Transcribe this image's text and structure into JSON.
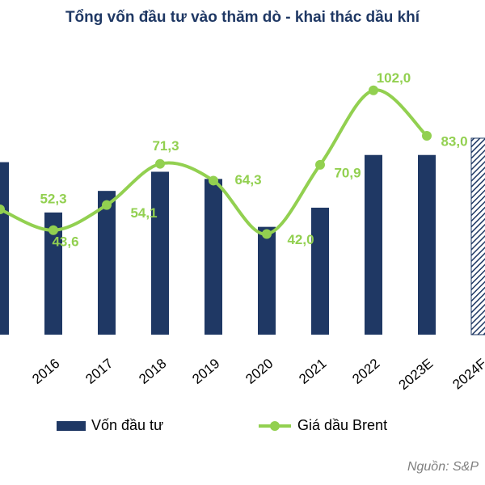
{
  "chart_data": {
    "type": "bar_line",
    "title": "Tổng vốn đầu tư vào thăm dò - khai thác dầu khí",
    "categories": [
      null,
      "2016",
      "2017",
      "2018",
      "2019",
      "2020",
      "2021",
      "2022",
      "2023E",
      "2024F"
    ],
    "series": [
      {
        "name": "Vốn đầu tư",
        "type": "bar",
        "color": "#1f3864",
        "values": [
          72,
          51,
          60,
          68,
          65,
          45,
          53,
          75,
          75,
          82
        ],
        "hatched_index": 9
      },
      {
        "name": "Giá dầu Brent",
        "type": "line",
        "axis": "y2",
        "color": "#92d050",
        "values": [
          52.3,
          43.6,
          54.1,
          71.3,
          64.3,
          42.0,
          70.9,
          102.0,
          83.0,
          null
        ],
        "value_labels": [
          "52,3",
          "43,6",
          "54,1",
          "71,3",
          "64,3",
          "42,0",
          "70,9",
          "102,0",
          "83,0",
          null
        ]
      }
    ],
    "ylim": [
      0,
      110
    ],
    "y2lim": [
      0,
      110
    ],
    "legend": "bottom",
    "source": "Nguồn: S&P"
  }
}
